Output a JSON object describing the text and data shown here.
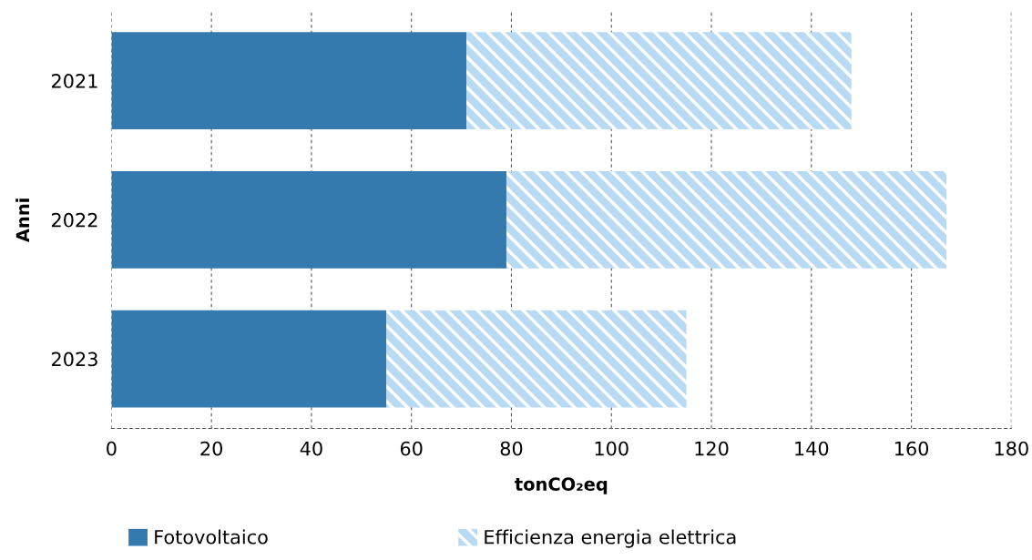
{
  "chart_data": {
    "type": "bar",
    "orientation": "horizontal",
    "stacked": true,
    "ylabel": "Anni",
    "xlabel": "tonCO₂eq",
    "categories": [
      "2021",
      "2022",
      "2023"
    ],
    "series": [
      {
        "name": "Fotovoltaico",
        "color": "#357aae",
        "values": [
          71,
          79,
          55
        ]
      },
      {
        "name": "Efficienza energia elettrica",
        "color": "#b9daf3",
        "values": [
          77,
          88,
          60
        ]
      }
    ],
    "xlim": [
      0,
      180
    ],
    "xticks": [
      0,
      20,
      40,
      60,
      80,
      100,
      120,
      140,
      160,
      180
    ],
    "grid": "x",
    "legend": "bottom"
  }
}
